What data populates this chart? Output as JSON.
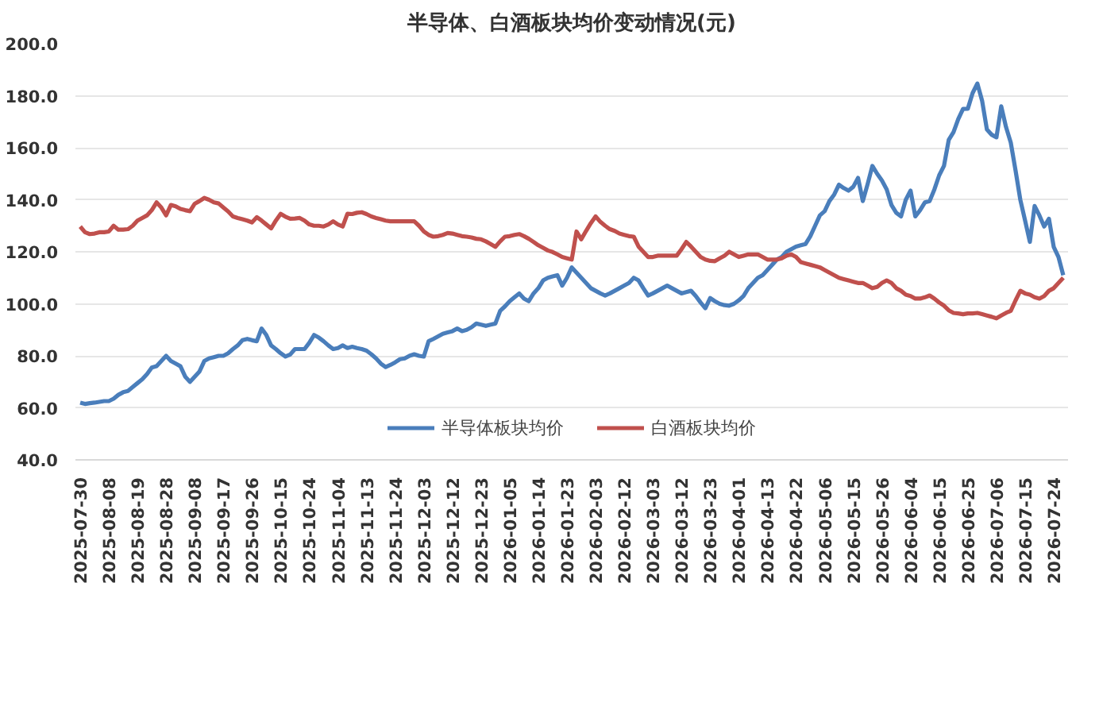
{
  "chart_data": {
    "type": "line",
    "title": "半导体、白酒板块均价变动情况(元)",
    "categories": [
      "2025-07-30",
      null,
      null,
      null,
      null,
      null,
      "2025-08-08",
      null,
      null,
      null,
      null,
      null,
      "2025-08-19",
      null,
      null,
      null,
      null,
      null,
      "2025-08-28",
      null,
      null,
      null,
      null,
      null,
      "2025-09-08",
      null,
      null,
      null,
      null,
      null,
      "2025-09-17",
      null,
      null,
      null,
      null,
      null,
      "2025-09-26",
      null,
      null,
      null,
      null,
      null,
      "2025-10-15",
      null,
      null,
      null,
      null,
      null,
      "2025-10-24",
      null,
      null,
      null,
      null,
      null,
      "2025-11-04",
      null,
      null,
      null,
      null,
      null,
      "2025-11-13",
      null,
      null,
      null,
      null,
      null,
      "2025-11-24",
      null,
      null,
      null,
      null,
      null,
      "2025-12-03",
      null,
      null,
      null,
      null,
      null,
      "2025-12-12",
      null,
      null,
      null,
      null,
      null,
      "2025-12-23",
      null,
      null,
      null,
      null,
      null,
      "2026-01-05",
      null,
      null,
      null,
      null,
      null,
      "2026-01-14",
      null,
      null,
      null,
      null,
      null,
      "2026-01-23",
      null,
      null,
      null,
      null,
      null,
      "2026-02-03",
      null,
      null,
      null,
      null,
      null,
      "2026-02-12",
      null,
      null,
      null,
      null,
      null,
      "2026-03-03",
      null,
      null,
      null,
      null,
      null,
      "2026-03-12",
      null,
      null,
      null,
      null,
      null,
      "2026-03-23",
      null,
      null,
      null,
      null,
      null,
      "2026-04-01",
      null,
      null,
      null,
      null,
      null,
      "2026-04-13",
      null,
      null,
      null,
      null,
      null,
      "2026-04-22",
      null,
      null,
      null,
      null,
      null,
      "2026-05-06",
      null,
      null,
      null,
      null,
      null,
      "2026-05-15",
      null,
      null,
      null,
      null,
      null,
      "2026-05-26",
      null,
      null,
      null,
      null,
      null,
      "2026-06-04",
      null,
      null,
      null,
      null,
      null,
      "2026-06-15",
      null,
      null,
      null,
      null,
      null,
      "2026-06-25",
      null,
      null,
      null,
      null,
      null,
      "2026-07-06",
      null,
      null,
      null,
      null,
      null,
      "2026-07-15",
      null,
      null,
      null,
      null,
      null,
      "2026-07-24",
      null,
      null
    ],
    "series": [
      {
        "name": "半导体板块均价",
        "color": "#4a7ebb",
        "values": [
          62,
          61.5,
          61.8,
          62,
          62.3,
          62.6,
          62.6,
          63.5,
          65,
          66,
          66.5,
          68,
          69.5,
          71,
          73,
          75.5,
          76,
          78,
          80,
          78,
          77,
          76,
          72,
          70,
          72,
          74,
          78,
          79,
          79.5,
          80,
          80,
          81,
          82.6,
          84,
          86,
          86.5,
          86,
          85.6,
          90.5,
          88,
          84,
          82.6,
          81,
          79.7,
          80.5,
          82.6,
          82.6,
          82.6,
          85,
          88,
          87,
          85.6,
          84,
          82.6,
          83,
          84,
          83,
          83.5,
          83,
          82.6,
          82,
          80.6,
          79,
          77,
          75.7,
          76.5,
          77.5,
          78.7,
          79,
          80,
          80.6,
          80,
          79.7,
          85.6,
          86.5,
          87.5,
          88.5,
          89,
          89.5,
          90.5,
          89.5,
          90,
          91,
          92.4,
          92,
          91.5,
          92,
          92.4,
          97.3,
          99,
          101,
          102.5,
          104,
          102,
          101,
          104,
          106,
          109,
          110,
          110.5,
          111,
          107,
          110,
          114,
          112,
          110,
          108,
          106,
          105,
          104,
          103.2,
          104,
          105,
          106,
          107,
          108,
          110,
          109,
          106,
          103.2,
          104,
          105,
          106,
          107,
          106,
          105,
          104,
          104.5,
          105,
          103,
          100.5,
          98.3,
          102.2,
          101,
          100,
          99.5,
          99.3,
          100,
          101.3,
          103,
          106,
          108,
          110,
          111,
          113,
          115,
          117,
          118,
          120,
          121,
          122,
          122.5,
          123,
          126,
          130,
          134,
          135.6,
          139.5,
          142,
          145.8,
          144.5,
          143.5,
          145,
          148.4,
          139.5,
          146,
          153,
          150,
          147.4,
          144,
          138,
          135,
          133.6,
          140,
          143.5,
          133.6,
          136,
          139,
          139.5,
          144,
          149.4,
          153,
          163,
          166,
          171,
          174.9,
          175,
          181,
          184.7,
          178,
          167,
          165,
          164,
          175.9,
          168,
          162,
          151.3,
          140,
          132,
          123.8,
          137.6,
          134,
          129.7,
          132.7,
          121.9,
          118,
          111
        ]
      },
      {
        "name": "白酒板块均价",
        "color": "#c0504d",
        "values": [
          129.7,
          127.5,
          126.8,
          127,
          127.5,
          127.5,
          127.8,
          130,
          128.5,
          128.5,
          128.7,
          130,
          132,
          133,
          134,
          136,
          139,
          137,
          134,
          138,
          137.5,
          136.5,
          136,
          135.6,
          138.5,
          139.5,
          140.7,
          140,
          139,
          138.6,
          137,
          135.5,
          133.6,
          133,
          132.5,
          132,
          131.3,
          133.3,
          132,
          130.5,
          129,
          132,
          134.6,
          133.5,
          132.7,
          132.8,
          133,
          132,
          130.5,
          130,
          130,
          129.7,
          130.5,
          131.7,
          130.5,
          129.7,
          134.6,
          134.5,
          135,
          135.2,
          134.5,
          133.6,
          133,
          132.5,
          132,
          131.7,
          131.7,
          131.7,
          131.7,
          131.7,
          131.7,
          130,
          127.8,
          126.5,
          125.8,
          126,
          126.5,
          127.2,
          127,
          126.5,
          126,
          125.8,
          125.5,
          125,
          124.8,
          124,
          123,
          121.9,
          124,
          125.8,
          126,
          126.5,
          126.8,
          126,
          125,
          123.8,
          122.5,
          121.5,
          120.5,
          119.9,
          119,
          118,
          117.5,
          117,
          127.8,
          124.8,
          128,
          131,
          133.6,
          131.5,
          130,
          128.7,
          128,
          127,
          126.5,
          126,
          125.8,
          122,
          120,
          118,
          118,
          118.5,
          118.5,
          118.5,
          118.5,
          118.5,
          121,
          123.8,
          122,
          120,
          118,
          117,
          116.5,
          116.4,
          117.5,
          118.5,
          120,
          119,
          118,
          118.5,
          119,
          119,
          119,
          118,
          117,
          117,
          117,
          117.5,
          118.5,
          119,
          118,
          116,
          115.5,
          115,
          114.5,
          114,
          113,
          112,
          111,
          110,
          109.5,
          109,
          108.5,
          108,
          108,
          107,
          106,
          106.5,
          108,
          109,
          108,
          106,
          105,
          103.5,
          103,
          102,
          102,
          102.5,
          103.2,
          102,
          100.5,
          99.3,
          97.5,
          96.5,
          96.3,
          96,
          96.3,
          96.3,
          96.5,
          96,
          95.5,
          95,
          94.4,
          95.5,
          96.5,
          97.3,
          101.3,
          105,
          104,
          103.5,
          102.5,
          102,
          103,
          105,
          106,
          108,
          110
        ]
      }
    ],
    "ylim": [
      40,
      200
    ],
    "yticks": [
      {
        "value": 40,
        "label": "40.0"
      },
      {
        "value": 60,
        "label": "60.0"
      },
      {
        "value": 80,
        "label": "80.0"
      },
      {
        "value": 100,
        "label": "100.0"
      },
      {
        "value": 120,
        "label": "120.0"
      },
      {
        "value": 140,
        "label": "140.0"
      },
      {
        "value": 160,
        "label": "160.0"
      },
      {
        "value": 180,
        "label": "180.0"
      },
      {
        "value": 200,
        "label": "200.0"
      }
    ],
    "grid": "y",
    "legend": "bottom",
    "marker": "none",
    "line_style": "solid"
  }
}
